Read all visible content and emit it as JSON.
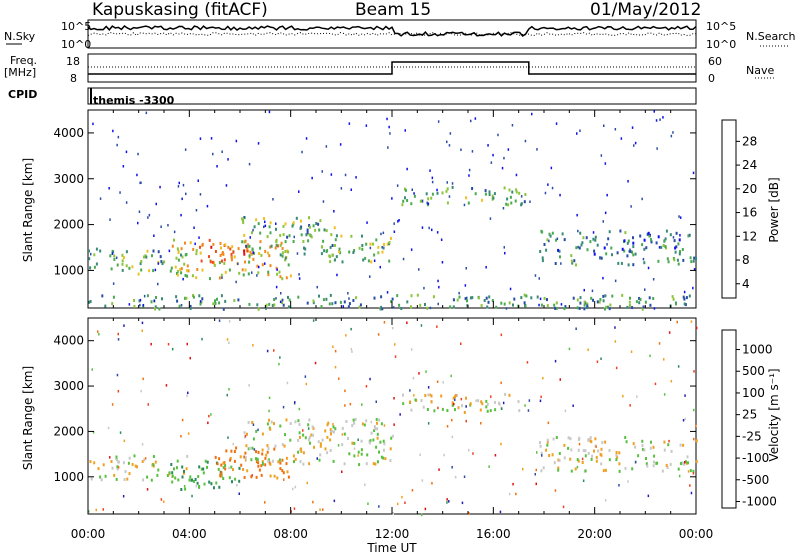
{
  "header": {
    "station": "Kapuskasing (fitACF)",
    "beam": "Beam 15",
    "date": "01/May/2012"
  },
  "top_panels": {
    "nsky_label": "N.Sky",
    "nsearch_label": "N.Search",
    "power_ticks": [
      "10^5",
      "10^0"
    ],
    "freq_label": "Freq.",
    "freq_unit": "[MHz]",
    "freq_ticks": [
      "18",
      "8"
    ],
    "nave_label": "Nave",
    "nave_ticks": [
      "60",
      "0"
    ],
    "cpid_label": "CPID",
    "cpid_value": "themis -3300"
  },
  "colors": {
    "power_scale": [
      "#1010ee",
      "#2a4ca8",
      "#3a8a78",
      "#4aaa50",
      "#8cc43a",
      "#f0c020",
      "#f08a20",
      "#f04a20",
      "#e01010"
    ],
    "velocity_scale": [
      "#2020b0",
      "#2a4ca8",
      "#2a8a5a",
      "#58c040",
      "#c8c8c8",
      "#f0a020",
      "#f07010",
      "#f04020",
      "#e01010"
    ]
  },
  "chart_data": [
    {
      "type": "heatmap",
      "title": "",
      "ylabel": "Slant Range [km]",
      "xlabel": "",
      "x_ticks": [
        "00:00",
        "04:00",
        "08:00",
        "12:00",
        "16:00",
        "20:00",
        "00:00"
      ],
      "y_ticks": [
        "1000",
        "2000",
        "3000",
        "4000"
      ],
      "xlim": [
        0,
        24
      ],
      "ylim": [
        180,
        4500
      ],
      "colorbar_label": "Power [dB]",
      "colorbar_ticks": [
        "28",
        "24",
        "20",
        "16",
        "12",
        "8",
        "4"
      ],
      "colorbar_range": [
        0,
        30
      ],
      "regions": [
        {
          "t": [
            0.0,
            4.0
          ],
          "range": [
            950,
            1500
          ],
          "level": 12
        },
        {
          "t": [
            3.3,
            8.0
          ],
          "range": [
            850,
            1700
          ],
          "level": 18
        },
        {
          "t": [
            4.5,
            6.5
          ],
          "range": [
            1200,
            1600
          ],
          "level": 25
        },
        {
          "t": [
            6.0,
            9.8
          ],
          "range": [
            1300,
            2200
          ],
          "level": 12
        },
        {
          "t": [
            9.5,
            12.0
          ],
          "range": [
            1200,
            1800
          ],
          "level": 14
        },
        {
          "t": [
            12.3,
            17.3
          ],
          "range": [
            2450,
            2850
          ],
          "level": 12
        },
        {
          "t": [
            17.8,
            24.0
          ],
          "range": [
            1150,
            1900
          ],
          "level": 8
        },
        {
          "t": [
            0.0,
            24.0
          ],
          "range": [
            180,
            500
          ],
          "level": 10
        }
      ]
    },
    {
      "type": "heatmap",
      "title": "",
      "ylabel": "Slant Range [km]",
      "xlabel": "Time UT",
      "x_ticks": [
        "00:00",
        "04:00",
        "08:00",
        "12:00",
        "16:00",
        "20:00",
        "00:00"
      ],
      "y_ticks": [
        "1000",
        "2000",
        "3000",
        "4000"
      ],
      "xlim": [
        0,
        24
      ],
      "ylim": [
        180,
        4500
      ],
      "colorbar_label": "Velocity [m s⁻¹]",
      "colorbar_ticks": [
        "1000",
        "500",
        "100",
        "25",
        "-25",
        "-100",
        "-500",
        "-1000"
      ],
      "colorbar_range": [
        -1000,
        1000
      ],
      "regions": [
        {
          "t": [
            0.0,
            4.0
          ],
          "range": [
            950,
            1500
          ],
          "velocity": 0
        },
        {
          "t": [
            3.2,
            6.0
          ],
          "range": [
            750,
            1400
          ],
          "velocity": 150
        },
        {
          "t": [
            5.0,
            8.0
          ],
          "range": [
            1000,
            1700
          ],
          "velocity": -200
        },
        {
          "t": [
            6.0,
            12.0
          ],
          "range": [
            1300,
            2300
          ],
          "velocity": 0
        },
        {
          "t": [
            12.3,
            17.3
          ],
          "range": [
            2450,
            2850
          ],
          "velocity": 0
        },
        {
          "t": [
            17.8,
            24.0
          ],
          "range": [
            1150,
            1900
          ],
          "velocity": 0
        }
      ]
    }
  ]
}
